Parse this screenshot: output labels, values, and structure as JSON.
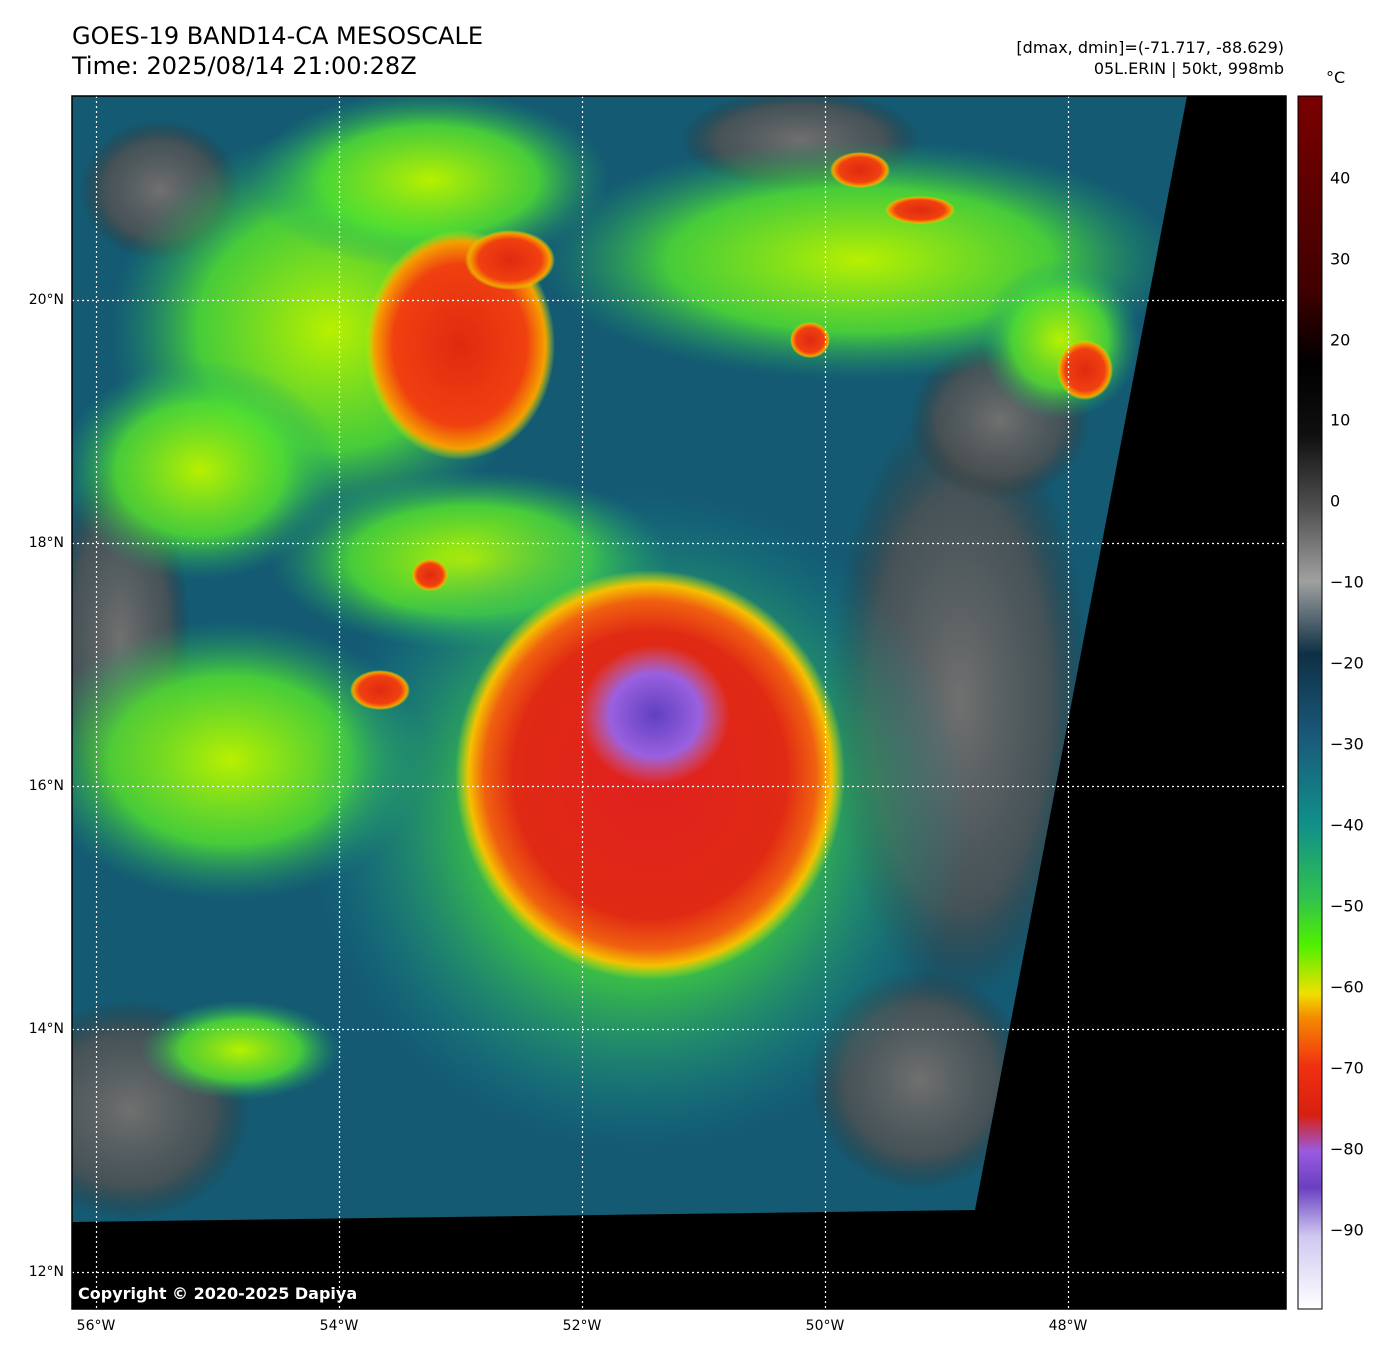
{
  "header": {
    "title_line1": "GOES-19 BAND14-CA MESOSCALE",
    "title_line2": "Time: 2025/08/14 21:00:28Z",
    "stats": "[dmax, dmin]=(-71.717, -88.629)",
    "storm": "05L.ERIN | 50kt, 998mb"
  },
  "map": {
    "lat_labels": [
      "20°N",
      "18°N",
      "16°N",
      "14°N",
      "12°N"
    ],
    "lon_labels": [
      "56°W",
      "54°W",
      "52°W",
      "50°W",
      "48°W"
    ],
    "copyright": "Copyright © 2020-2025 Dapiya",
    "feature": {
      "name": "05L.ERIN",
      "center_lat": 16.75,
      "center_lon": -51.25
    }
  },
  "colorbar": {
    "unit": "°C",
    "ticks": [
      "40",
      "30",
      "20",
      "10",
      "0",
      "−10",
      "−20",
      "−30",
      "−40",
      "−50",
      "−60",
      "−70",
      "−80",
      "−90"
    ],
    "tick_values": [
      40,
      30,
      20,
      10,
      0,
      -10,
      -20,
      -30,
      -40,
      -50,
      -60,
      -70,
      -80,
      -90
    ],
    "range": [
      -99,
      49
    ],
    "colors": {
      "warm_top": "#6b0000",
      "black": "#000000",
      "gray": "#8a8a8a",
      "dark_teal": "#0e3a55",
      "teal": "#138a8a",
      "green": "#30d040",
      "yellow_green": "#c8f000",
      "yellow": "#f0e000",
      "orange": "#f58a00",
      "red": "#e02010",
      "purple": "#9050e0",
      "light_purple": "#c8c0f0",
      "white": "#ffffff"
    }
  }
}
